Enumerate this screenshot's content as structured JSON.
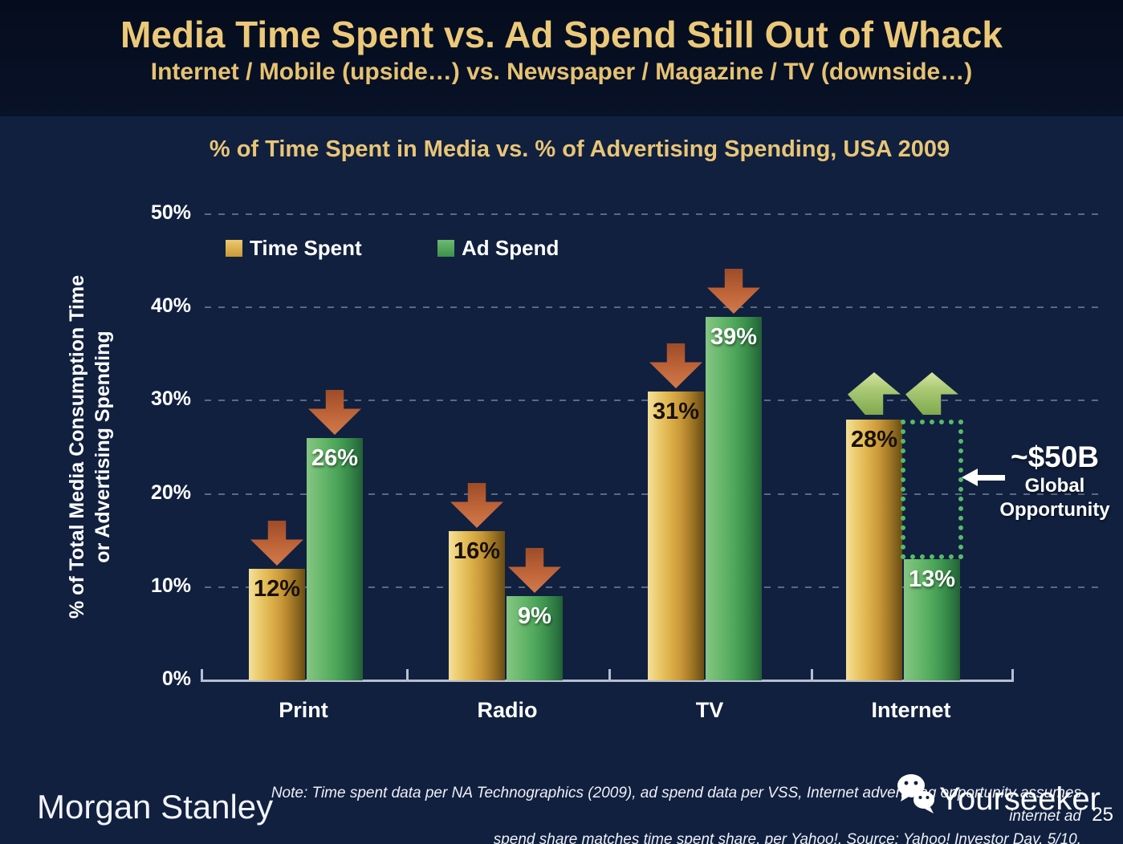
{
  "slide": {
    "title": "Media Time Spent vs. Ad Spend Still Out of Whack",
    "subtitle": "Internet / Mobile (upside…) vs. Newspaper / Magazine / TV (downside…)",
    "page_number": "25"
  },
  "chart_data": {
    "type": "bar",
    "title": "% of Time Spent in Media vs. % of Advertising Spending, USA 2009",
    "ylabel": "% of Total Media Consumption Time or Advertising Spending",
    "ylabel_lines": [
      "% of Total Media Consumption Time",
      "or Advertising Spending"
    ],
    "categories": [
      "Print",
      "Radio",
      "TV",
      "Internet"
    ],
    "series": [
      {
        "name": "Time Spent",
        "values": [
          12,
          16,
          31,
          28
        ],
        "labels": [
          "12%",
          "16%",
          "31%",
          "28%"
        ],
        "color": "#d9ad4e",
        "label_color": "#181106"
      },
      {
        "name": "Ad Spend",
        "values": [
          26,
          9,
          39,
          13
        ],
        "labels": [
          "26%",
          "9%",
          "39%",
          "13%"
        ],
        "color": "#56a75d",
        "label_color": "#ffffff"
      }
    ],
    "ylim": [
      0,
      50
    ],
    "yticks": [
      "0%",
      "10%",
      "20%",
      "30%",
      "40%",
      "50%"
    ],
    "grid": "dashed-horizontal",
    "legend_position": "top-left-inside",
    "annotations": {
      "down_arrows": [
        {
          "category": "Print",
          "series": "Time Spent"
        },
        {
          "category": "Print",
          "series": "Ad Spend"
        },
        {
          "category": "Radio",
          "series": "Time Spent"
        },
        {
          "category": "Radio",
          "series": "Ad Spend"
        },
        {
          "category": "TV",
          "series": "Time Spent"
        },
        {
          "category": "TV",
          "series": "Ad Spend"
        }
      ],
      "up_arrows": [
        {
          "category": "Internet",
          "series": "Time Spent"
        },
        {
          "category": "Internet",
          "series": "Ad Spend"
        }
      ],
      "opportunity": {
        "value": "~$50B",
        "label_lines": [
          "Global",
          "Opportunity"
        ],
        "category": "Internet",
        "gap_from_series": "Ad Spend",
        "gap_to_series": "Time Spent"
      }
    }
  },
  "footer": {
    "brand": "Morgan Stanley",
    "note_lines": [
      "Note: Time spent data per NA Technographics (2009), ad spend data per VSS, Internet advertising opportunity assumes internet ad",
      "spend share matches time spent share, per Yahoo!. Source: Yahoo! Investor Day, 5/10."
    ],
    "watermark": "Yourseeker"
  },
  "colors": {
    "header_bg": "#071126",
    "body_bg": "#11203f",
    "title_gold": "#ecc979",
    "bar_gold": "#d9ad4e",
    "bar_green": "#56a75d",
    "down_arrow": "#c06a42",
    "up_arrow": "#a9cc78",
    "dotted_box_green": "#56bb68",
    "axis_line": "#b6bfd0",
    "text_white": "#ffffff"
  }
}
